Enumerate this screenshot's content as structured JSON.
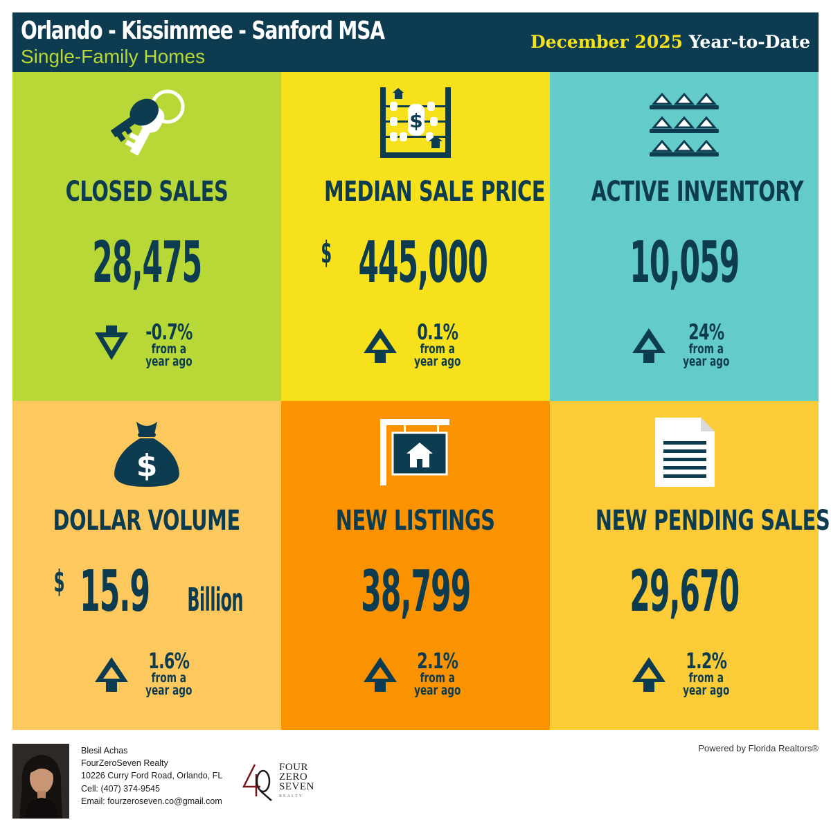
{
  "header": {
    "title": "Orlando - Kissimmee - Sanford MSA",
    "subtitle": "Single-Family Homes",
    "period_month": "December 2025",
    "period_label": "Year-to-Date"
  },
  "colors": {
    "navy": "#0d3b4f",
    "green": "#b8d838",
    "yellow": "#f7e11c",
    "teal": "#63cbc8",
    "light_orange": "#fdc85e",
    "orange": "#fb9300",
    "gold": "#fbcc38"
  },
  "tiles": [
    {
      "label": "CLOSED SALES",
      "currency": "",
      "value": "28,475",
      "unit": "",
      "direction": "down",
      "change": "-0.7%",
      "change_sub1": "from a",
      "change_sub2": "year ago",
      "icon": "keys-icon"
    },
    {
      "label": "MEDIAN SALE PRICE",
      "currency": "$",
      "value": "445,000",
      "unit": "",
      "direction": "up",
      "change": "0.1%",
      "change_sub1": "from a",
      "change_sub2": "year ago",
      "icon": "abacus-icon"
    },
    {
      "label": "ACTIVE INVENTORY",
      "currency": "",
      "value": "10,059",
      "unit": "",
      "direction": "up",
      "change": "24%",
      "change_sub1": "from a",
      "change_sub2": "year ago",
      "icon": "houses-shelf-icon"
    },
    {
      "label": "DOLLAR VOLUME",
      "currency": "$",
      "value": "15.9",
      "unit": "Billion",
      "direction": "up",
      "change": "1.6%",
      "change_sub1": "from a",
      "change_sub2": "year ago",
      "icon": "money-bag-icon"
    },
    {
      "label": "NEW LISTINGS",
      "currency": "",
      "value": "38,799",
      "unit": "",
      "direction": "up",
      "change": "2.1%",
      "change_sub1": "from a",
      "change_sub2": "year ago",
      "icon": "for-sale-sign-icon"
    },
    {
      "label": "NEW PENDING SALES",
      "currency": "",
      "value": "29,670",
      "unit": "",
      "direction": "up",
      "change": "1.2%",
      "change_sub1": "from a",
      "change_sub2": "year ago",
      "icon": "document-icon"
    }
  ],
  "footer": {
    "agent_name": "Blesil Achas",
    "brokerage": "FourZeroSeven Realty",
    "address": "10226 Curry Ford Road, Orlando, FL",
    "cell": "Cell: (407) 374-9545",
    "email": "Email: fourzeroseven.co@gmail.com",
    "logo_line1": "FOUR",
    "logo_line2": "ZERO",
    "logo_line3": "SEVEN",
    "logo_line4": "REALTY",
    "powered_by": "Powered by Florida Realtors®"
  }
}
